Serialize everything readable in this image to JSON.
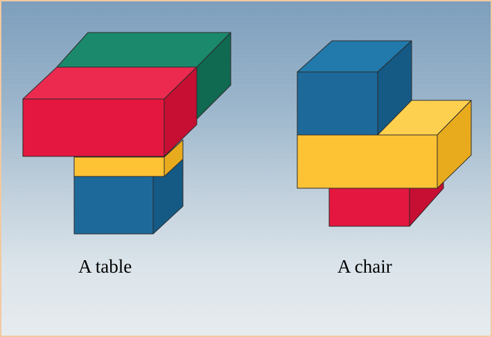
{
  "captions": {
    "table": "A table",
    "chair": "A chair"
  },
  "colors": {
    "green": "#157a5f",
    "green_top": "#1b8a6c",
    "green_side": "#0f6a51",
    "red": "#e3173f",
    "red_top": "#ec2a50",
    "red_side": "#c60f33",
    "yellow": "#fdc335",
    "yellow_top": "#fed04f",
    "yellow_side": "#e9ab1e",
    "blue": "#1d6a9a",
    "blue_top": "#2279ab",
    "blue_side": "#155a85"
  }
}
